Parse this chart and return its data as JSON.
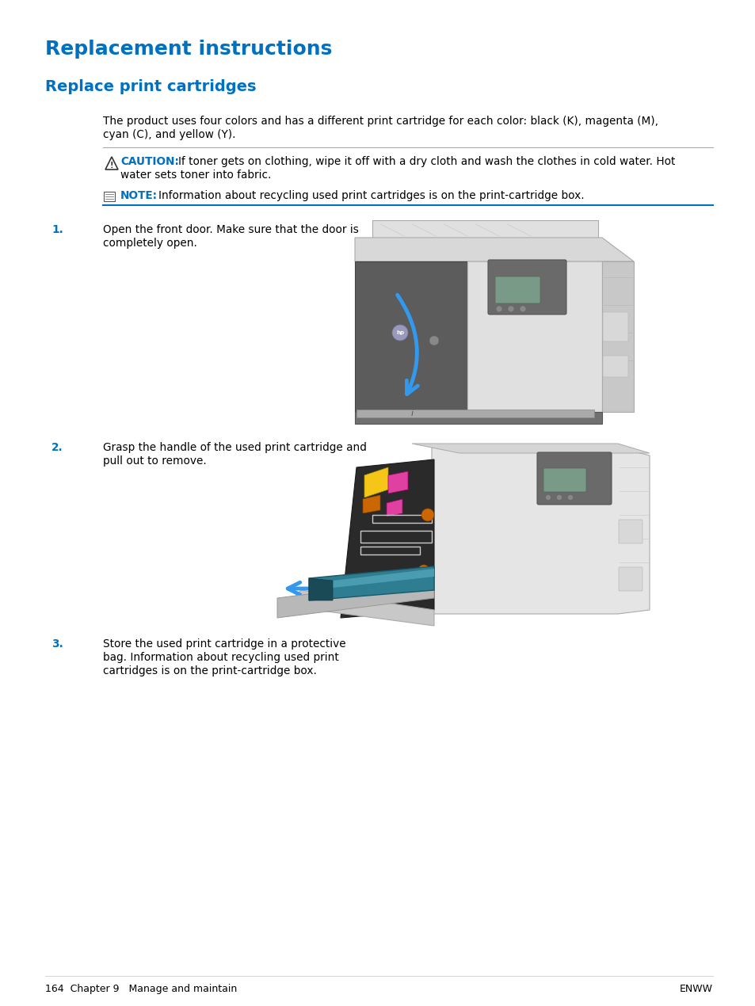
{
  "bg_color": "#ffffff",
  "title": "Replacement instructions",
  "subtitle": "Replace print cartridges",
  "title_color": "#0070C0",
  "subtitle_color": "#0070C0",
  "body_color": "#000000",
  "blue_color": "#0070C0",
  "caution_line_color": "#0070C0",
  "note_line_color": "#0070C0",
  "caution_label": "CAUTION:",
  "caution_text_1": "   If toner gets on clothing, wipe it off with a dry cloth and wash the clothes in cold water. Hot",
  "caution_text_2": "water sets toner into fabric.",
  "note_label": "NOTE:",
  "note_text": "   Information about recycling used print cartridges is on the print-cartridge box.",
  "body_line1": "The product uses four colors and has a different print cartridge for each color: black (K), magenta (M),",
  "body_line2": "cyan (C), and yellow (Y).",
  "step1_num": "1.",
  "step1_line1": "Open the front door. Make sure that the door is",
  "step1_line2": "completely open.",
  "step2_num": "2.",
  "step2_line1": "Grasp the handle of the used print cartridge and",
  "step2_line2": "pull out to remove.",
  "step3_num": "3.",
  "step3_line1": "Store the used print cartridge in a protective",
  "step3_line2": "bag. Information about recycling used print",
  "step3_line3": "cartridges is on the print-cartridge box.",
  "footer_left": "164  Chapter 9   Manage and maintain",
  "footer_right": "ENWW",
  "printer1_gray_light": "#E8E8E8",
  "printer1_gray_mid": "#C8C8C8",
  "printer1_gray_dark": "#6A6A6A",
  "printer1_gray_darker": "#505050",
  "printer1_border": "#AAAAAA",
  "printer1_dark_body": "#5A5A5A",
  "arrow_blue": "#3399EE",
  "toner_yellow": "#F5C518",
  "toner_magenta": "#E040A0",
  "toner_cyan": "#00AACC",
  "toner_dark": "#333333",
  "toner_orange": "#CC6600"
}
